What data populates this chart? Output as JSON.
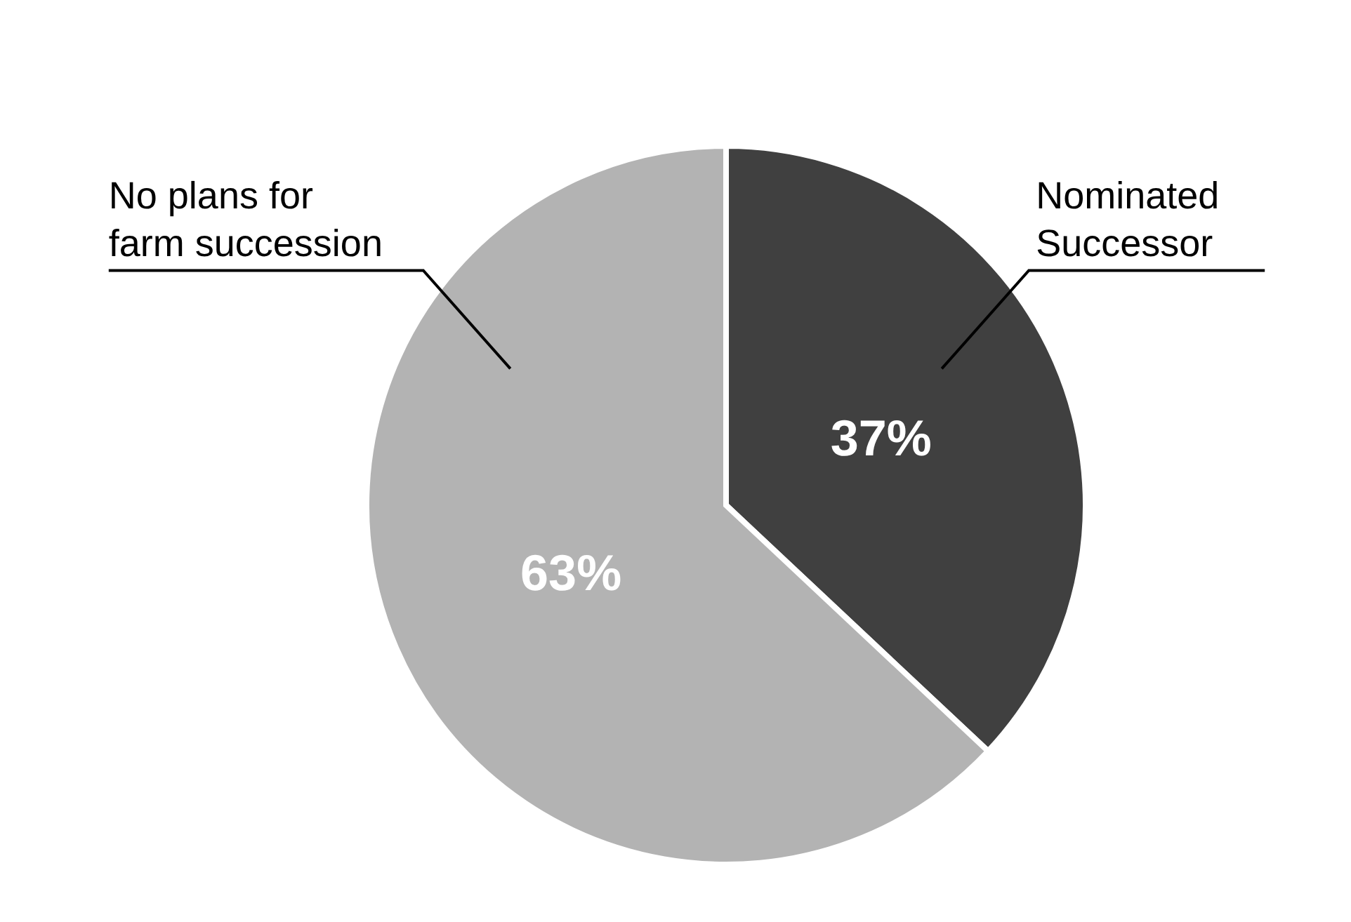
{
  "chart_data": {
    "type": "pie",
    "categories": [
      "Nominated Successor",
      "No plans for farm succession"
    ],
    "values": [
      37,
      63
    ],
    "colors": [
      "#404040",
      "#b3b3b3"
    ],
    "value_labels": [
      "37%",
      "63%"
    ]
  }
}
